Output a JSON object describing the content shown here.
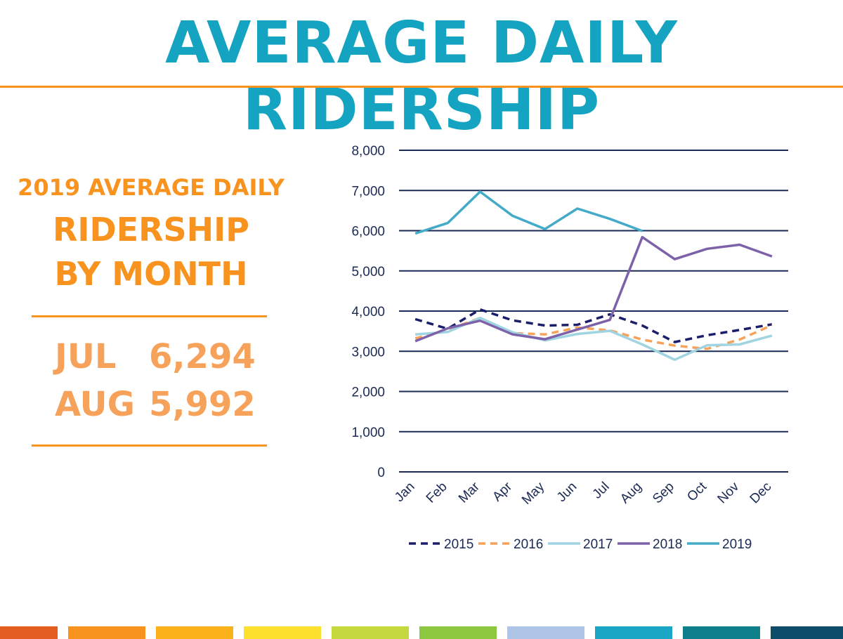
{
  "title": "AVERAGE DAILY RIDERSHIP",
  "sidebar": {
    "heading_line1": "2019 AVERAGE DAILY",
    "heading_line2": "RIDERSHIP",
    "heading_line3": "BY MONTH",
    "stats": [
      {
        "month": "JUL",
        "value": "6,294"
      },
      {
        "month": "AUG",
        "value": "5,992"
      }
    ]
  },
  "colors": {
    "title": "#14a3c0",
    "accent": "#f7931e",
    "footer": [
      "#e35d20",
      "#f7931e",
      "#fbb21a",
      "#fde02e",
      "#c5d93e",
      "#8dc63f",
      "#aec5e8",
      "#1aa6c4",
      "#0f7f8c",
      "#0d4d6a"
    ]
  },
  "chart_data": {
    "type": "line",
    "categories": [
      "Jan",
      "Feb",
      "Mar",
      "Apr",
      "May",
      "Jun",
      "Jul",
      "Aug",
      "Sep",
      "Oct",
      "Nov",
      "Dec"
    ],
    "y_ticks": [
      "0",
      "1,000",
      "2,000",
      "3,000",
      "4,000",
      "5,000",
      "6,000",
      "7,000",
      "8,000"
    ],
    "ylim": [
      0,
      8000
    ],
    "grid": true,
    "legend_position": "bottom",
    "series": [
      {
        "name": "2015",
        "color": "#1b1f6b",
        "dash": "dashed",
        "values": [
          3800,
          3560,
          4040,
          3770,
          3640,
          3660,
          3920,
          3640,
          3230,
          3400,
          3530,
          3670
        ]
      },
      {
        "name": "2016",
        "color": "#f7a25a",
        "dash": "dashed",
        "values": [
          3320,
          3530,
          3830,
          3450,
          3420,
          3590,
          3520,
          3290,
          3140,
          3060,
          3290,
          3650
        ]
      },
      {
        "name": "2017",
        "color": "#9fd4e0",
        "dash": "solid",
        "values": [
          3420,
          3480,
          3830,
          3470,
          3270,
          3430,
          3510,
          3170,
          2790,
          3150,
          3170,
          3390
        ]
      },
      {
        "name": "2018",
        "color": "#7d62a9",
        "dash": "solid",
        "values": [
          3250,
          3570,
          3760,
          3420,
          3300,
          3540,
          3780,
          5840,
          5290,
          5550,
          5650,
          5360
        ]
      },
      {
        "name": "2019",
        "color": "#43aac8",
        "dash": "solid",
        "values": [
          5930,
          6190,
          6970,
          6370,
          6040,
          6550,
          6294,
          5992,
          null,
          null,
          null,
          null
        ]
      }
    ]
  }
}
